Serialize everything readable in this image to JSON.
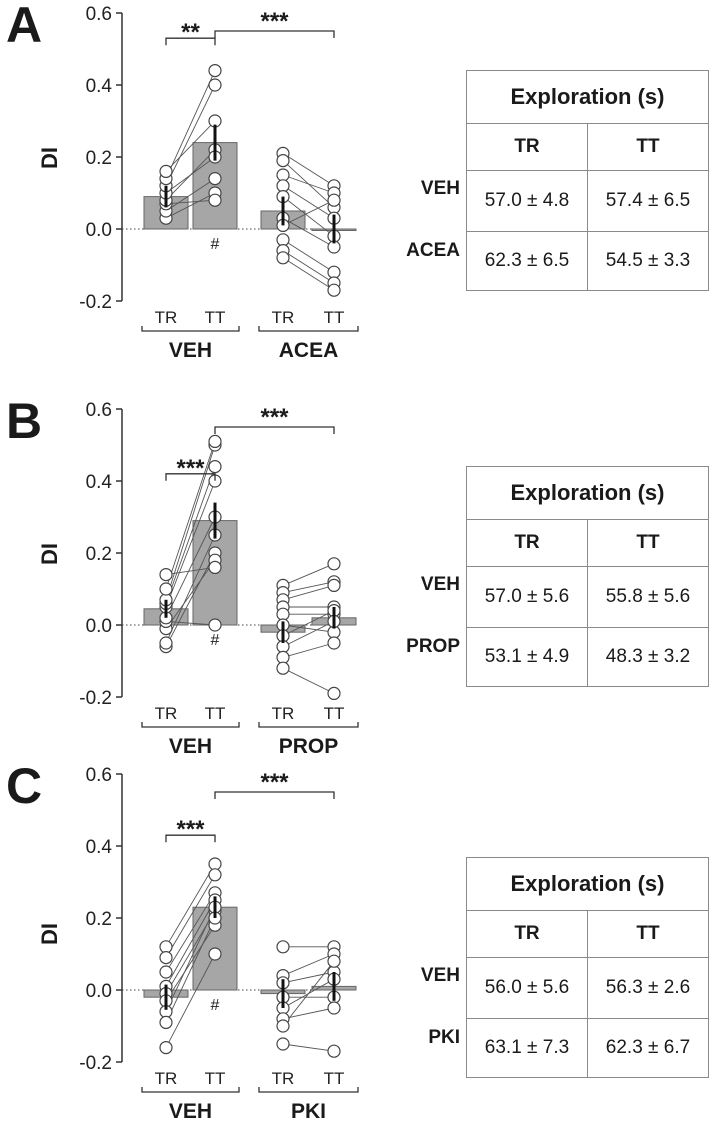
{
  "panels": [
    {
      "letter": "A",
      "ylabel": "DI",
      "yticks": [
        "0.6",
        "0.4",
        "0.2",
        "0.0",
        "-0.2"
      ],
      "groups": [
        "VEH",
        "ACEA"
      ],
      "conditions": [
        "TR",
        "TT"
      ],
      "sig_inner": "**",
      "sig_outer": "***",
      "hash": "#",
      "table": {
        "title": "Exploration (s)",
        "col_headers": [
          "TR",
          "TT"
        ],
        "rows": [
          {
            "label": "VEH",
            "tr": "57.0 ± 4.8",
            "tt": "57.4 ± 6.5"
          },
          {
            "label": "ACEA",
            "tr": "62.3 ± 6.5",
            "tt": "54.5 ± 3.3"
          }
        ]
      }
    },
    {
      "letter": "B",
      "ylabel": "DI",
      "yticks": [
        "0.6",
        "0.4",
        "0.2",
        "0.0",
        "-0.2"
      ],
      "groups": [
        "VEH",
        "PROP"
      ],
      "conditions": [
        "TR",
        "TT"
      ],
      "sig_inner": "***",
      "sig_outer": "***",
      "hash": "#",
      "table": {
        "title": "Exploration (s)",
        "col_headers": [
          "TR",
          "TT"
        ],
        "rows": [
          {
            "label": "VEH",
            "tr": "57.0 ± 5.6",
            "tt": "55.8 ± 5.6"
          },
          {
            "label": "PROP",
            "tr": "53.1 ± 4.9",
            "tt": "48.3 ± 3.2"
          }
        ]
      }
    },
    {
      "letter": "C",
      "ylabel": "DI",
      "yticks": [
        "0.6",
        "0.4",
        "0.2",
        "0.0",
        "-0.2"
      ],
      "groups": [
        "VEH",
        "PKI"
      ],
      "conditions": [
        "TR",
        "TT"
      ],
      "sig_inner": "***",
      "sig_outer": "***",
      "hash": "#",
      "table": {
        "title": "Exploration (s)",
        "col_headers": [
          "TR",
          "TT"
        ],
        "rows": [
          {
            "label": "VEH",
            "tr": "56.0 ± 5.6",
            "tt": "56.3 ± 2.6"
          },
          {
            "label": "PKI",
            "tr": "63.1 ± 7.3",
            "tt": "62.3 ± 6.7"
          }
        ]
      }
    }
  ],
  "chart_data": [
    {
      "type": "bar",
      "ylabel": "DI",
      "ylim": [
        -0.2,
        0.6
      ],
      "categories": [
        "VEH TR",
        "VEH TT",
        "ACEA TR",
        "ACEA TT"
      ],
      "values": [
        0.09,
        0.24,
        0.05,
        0.0
      ],
      "errors": [
        0.03,
        0.05,
        0.04,
        0.04
      ],
      "paired_points": {
        "VEH": [
          [
            0.03,
            0.1
          ],
          [
            0.05,
            0.14
          ],
          [
            0.07,
            0.08
          ],
          [
            0.08,
            0.22
          ],
          [
            0.1,
            0.2
          ],
          [
            0.12,
            0.4
          ],
          [
            0.14,
            0.44
          ],
          [
            0.16,
            0.3
          ]
        ],
        "ACEA": [
          [
            0.21,
            0.12
          ],
          [
            0.19,
            0.06
          ],
          [
            0.15,
            0.1
          ],
          [
            0.12,
            0.03
          ],
          [
            0.09,
            -0.02
          ],
          [
            0.03,
            -0.05
          ],
          [
            0.01,
            0.08
          ],
          [
            -0.03,
            -0.12
          ],
          [
            -0.06,
            -0.15
          ],
          [
            -0.08,
            -0.17
          ]
        ]
      }
    },
    {
      "type": "bar",
      "ylabel": "DI",
      "ylim": [
        -0.2,
        0.6
      ],
      "categories": [
        "VEH TR",
        "VEH TT",
        "PROP TR",
        "PROP TT"
      ],
      "values": [
        0.045,
        0.29,
        -0.02,
        0.02
      ],
      "errors": [
        0.025,
        0.05,
        0.03,
        0.03
      ],
      "paired_points": {
        "VEH": [
          [
            -0.06,
            0.2
          ],
          [
            -0.05,
            0.25
          ],
          [
            -0.01,
            0.18
          ],
          [
            0.01,
            0.0
          ],
          [
            0.02,
            0.3
          ],
          [
            0.05,
            0.4
          ],
          [
            0.06,
            0.44
          ],
          [
            0.07,
            0.5
          ],
          [
            0.1,
            0.51
          ],
          [
            0.14,
            0.16
          ]
        ],
        "PROP": [
          [
            0.11,
            0.17
          ],
          [
            0.09,
            0.12
          ],
          [
            0.07,
            0.11
          ],
          [
            0.05,
            0.05
          ],
          [
            0.03,
            0.03
          ],
          [
            0.0,
            -0.02
          ],
          [
            -0.03,
            0.04
          ],
          [
            -0.06,
            0.01
          ],
          [
            -0.09,
            -0.05
          ],
          [
            -0.12,
            -0.19
          ]
        ]
      }
    },
    {
      "type": "bar",
      "ylabel": "DI",
      "ylim": [
        -0.2,
        0.6
      ],
      "categories": [
        "VEH TR",
        "VEH TT",
        "PKI TR",
        "PKI TT"
      ],
      "values": [
        -0.02,
        0.23,
        -0.01,
        0.01
      ],
      "errors": [
        0.035,
        0.03,
        0.04,
        0.04
      ],
      "paired_points": {
        "VEH": [
          [
            0.12,
            0.35
          ],
          [
            0.09,
            0.32
          ],
          [
            0.05,
            0.27
          ],
          [
            0.01,
            0.25
          ],
          [
            -0.01,
            0.22
          ],
          [
            -0.03,
            0.18
          ],
          [
            -0.06,
            0.23
          ],
          [
            -0.09,
            0.2
          ],
          [
            -0.16,
            0.1
          ]
        ],
        "PKI": [
          [
            0.12,
            0.12
          ],
          [
            0.04,
            0.1
          ],
          [
            0.02,
            0.05
          ],
          [
            -0.02,
            -0.02
          ],
          [
            -0.05,
            0.03
          ],
          [
            -0.08,
            -0.05
          ],
          [
            -0.1,
            0.08
          ],
          [
            -0.15,
            -0.17
          ]
        ]
      }
    }
  ]
}
